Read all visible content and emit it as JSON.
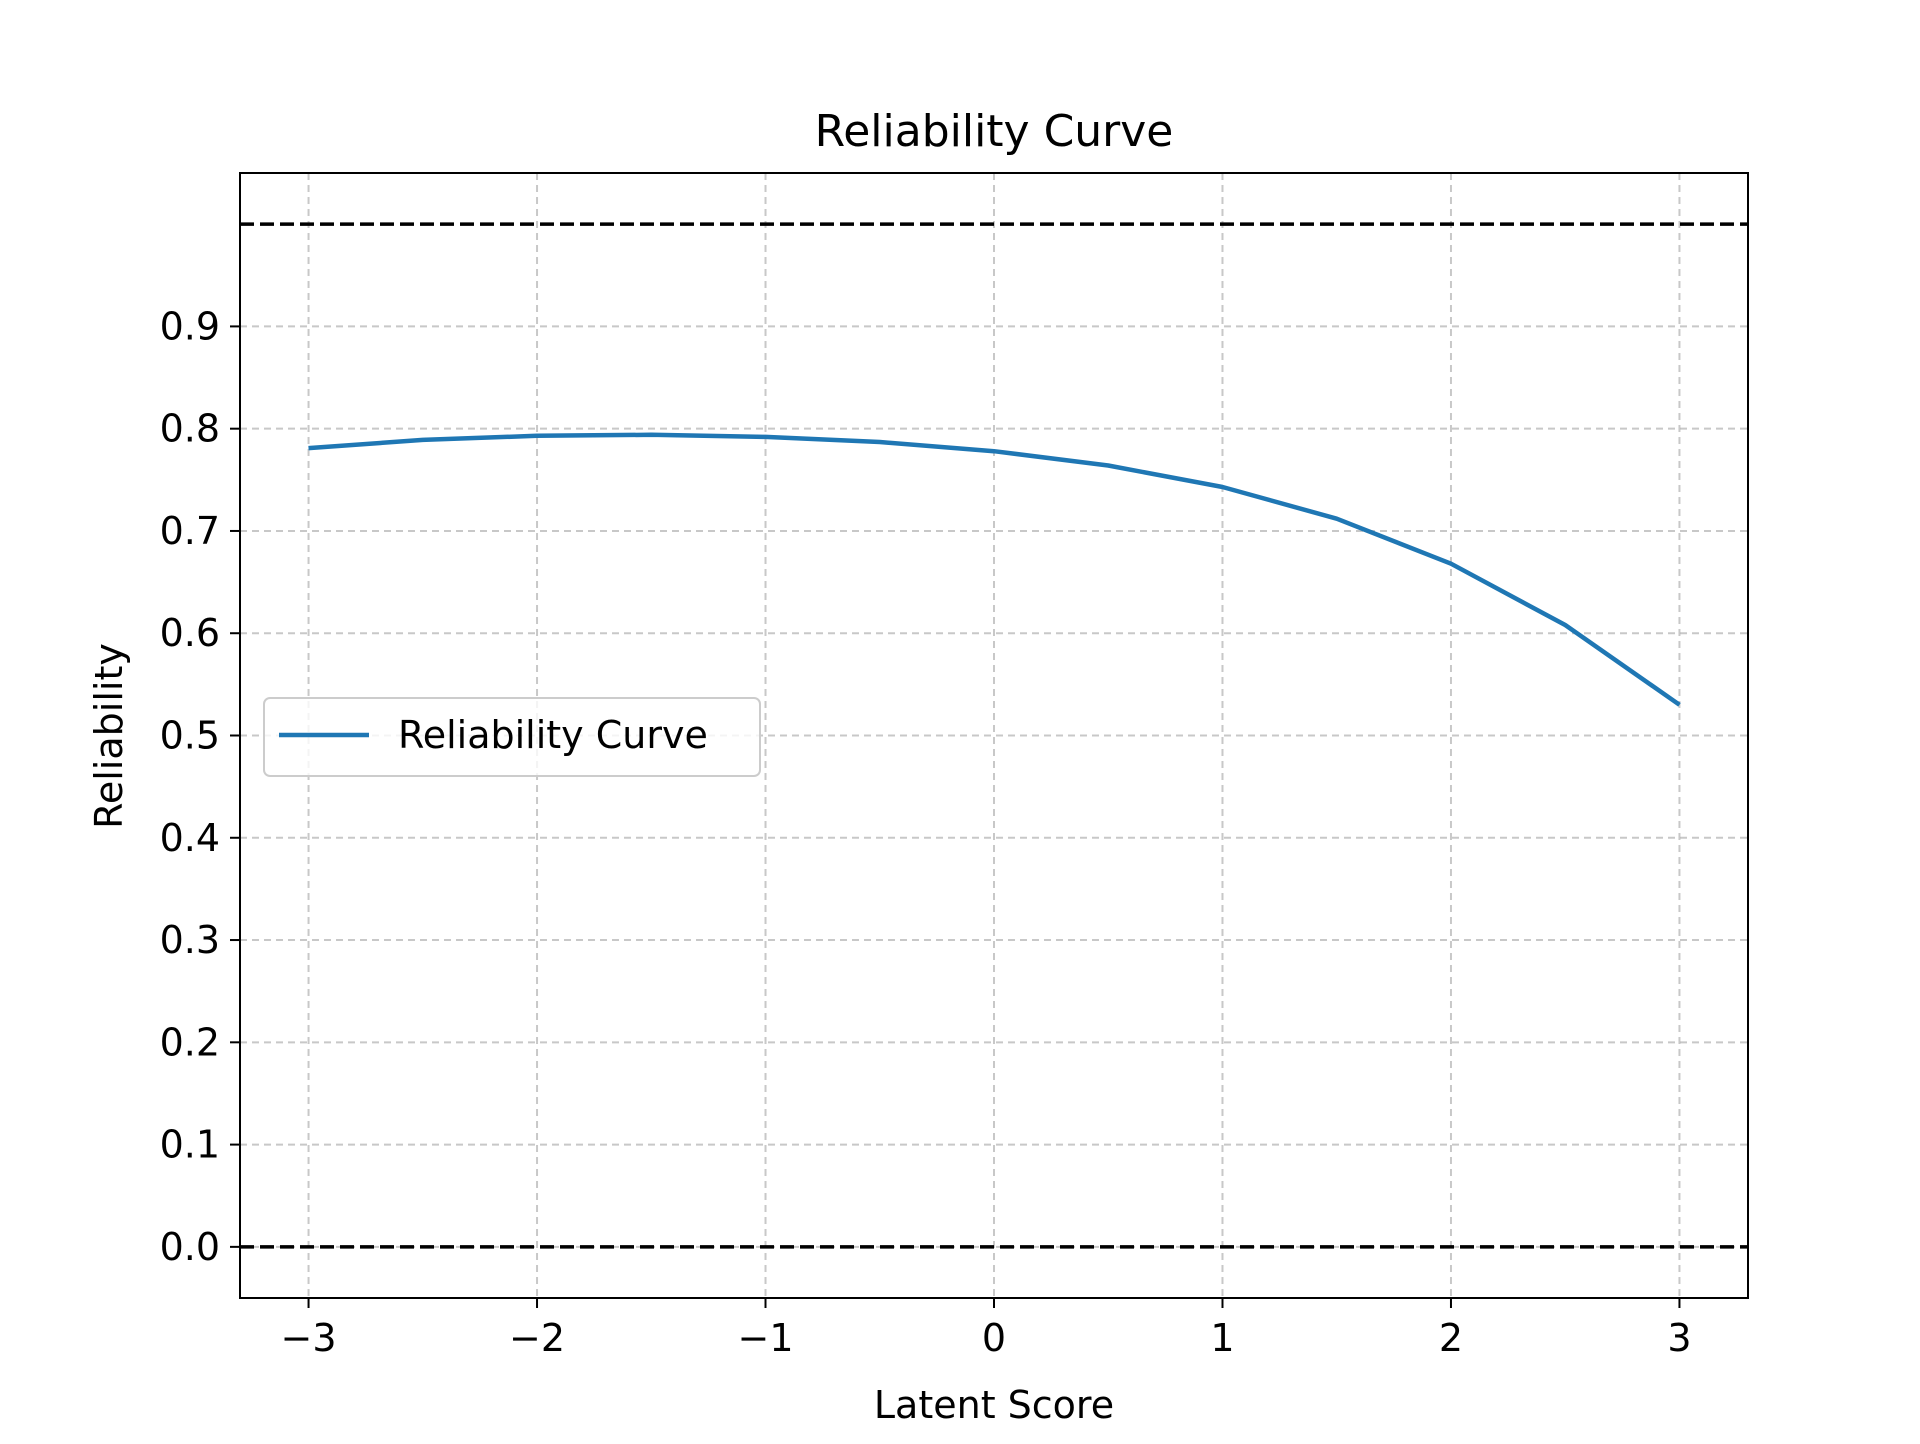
{
  "chart_data": {
    "type": "line",
    "title": "Reliability Curve",
    "xlabel": "Latent Score",
    "ylabel": "Reliability",
    "xlim": [
      -3.3,
      3.3
    ],
    "ylim": [
      -0.05,
      1.05
    ],
    "x_ticks": [
      -3,
      -2,
      -1,
      0,
      1,
      2,
      3
    ],
    "x_tick_labels": [
      "−3",
      "−2",
      "−1",
      "0",
      "1",
      "2",
      "3"
    ],
    "y_ticks": [
      0.0,
      0.1,
      0.2,
      0.3,
      0.4,
      0.5,
      0.6,
      0.7,
      0.8,
      0.9
    ],
    "y_tick_labels": [
      "0.0",
      "0.1",
      "0.2",
      "0.3",
      "0.4",
      "0.5",
      "0.6",
      "0.7",
      "0.8",
      "0.9"
    ],
    "grid": true,
    "legend_position": "center-left",
    "series": [
      {
        "name": "Reliability Curve",
        "color": "#1f77b4",
        "x": [
          -3.0,
          -2.5,
          -2.0,
          -1.5,
          -1.0,
          -0.5,
          0.0,
          0.5,
          1.0,
          1.5,
          2.0,
          2.5,
          3.0
        ],
        "y": [
          0.781,
          0.789,
          0.793,
          0.794,
          0.792,
          0.787,
          0.778,
          0.764,
          0.743,
          0.712,
          0.668,
          0.608,
          0.53
        ]
      }
    ],
    "reference_lines": [
      {
        "y": 1.0,
        "color": "#000000",
        "style": "dashed"
      },
      {
        "y": 0.0,
        "color": "#000000",
        "style": "dashed"
      }
    ]
  }
}
